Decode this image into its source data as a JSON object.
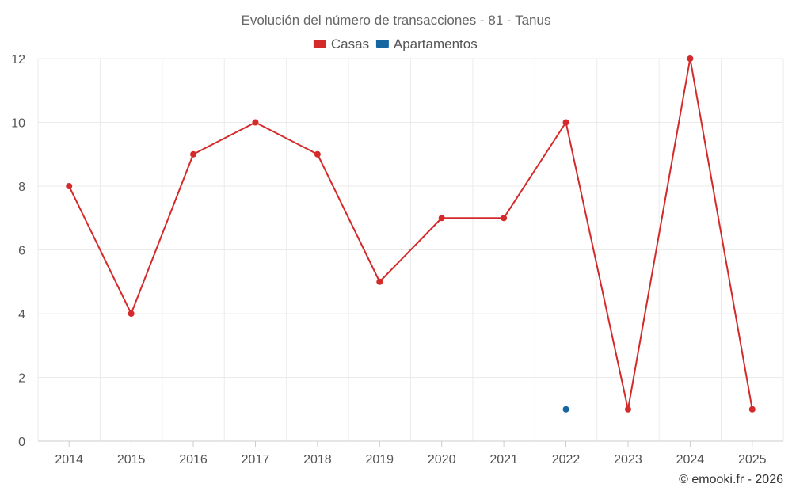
{
  "chart_data": {
    "type": "line",
    "title": "Evolución del número de transacciones - 81 - Tanus",
    "xlabel": "",
    "ylabel": "",
    "categories": [
      "2014",
      "2015",
      "2016",
      "2017",
      "2018",
      "2019",
      "2020",
      "2021",
      "2022",
      "2023",
      "2024",
      "2025"
    ],
    "ylim": [
      0,
      12
    ],
    "yticks": [
      0,
      2,
      4,
      6,
      8,
      10,
      12
    ],
    "grid": true,
    "legend_position": "top-center",
    "series": [
      {
        "name": "Casas",
        "color": "#d42a2a",
        "values": [
          8,
          4,
          9,
          10,
          9,
          5,
          7,
          7,
          10,
          1,
          12,
          1
        ]
      },
      {
        "name": "Apartamentos",
        "color": "#1565a0",
        "values": [
          null,
          null,
          null,
          null,
          null,
          null,
          null,
          null,
          1,
          null,
          null,
          null
        ]
      }
    ]
  },
  "credit": "© emooki.fr - 2026"
}
